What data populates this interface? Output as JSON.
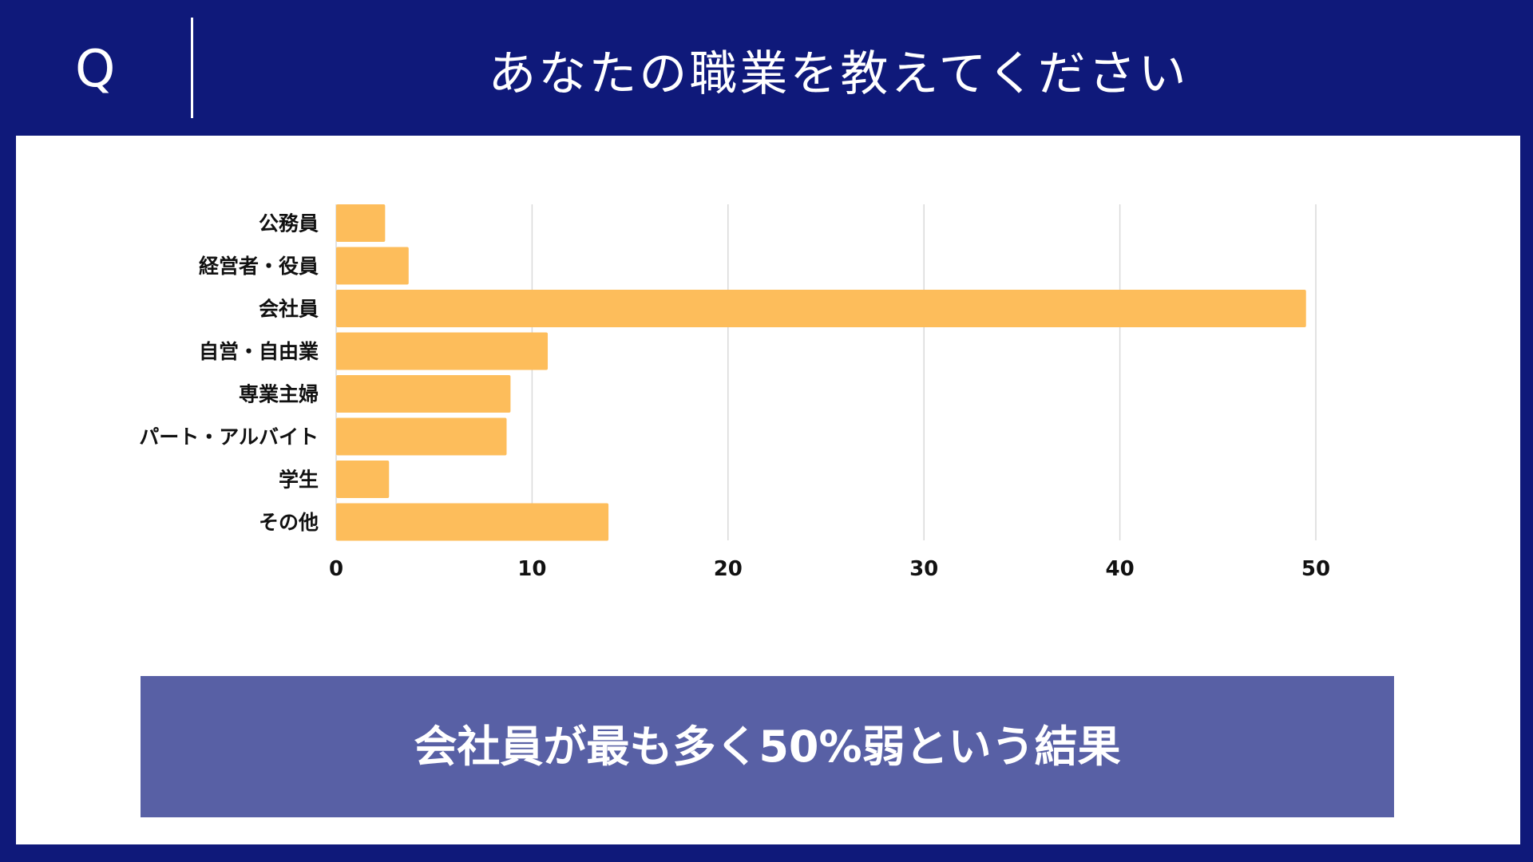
{
  "header": {
    "q_label": "Q",
    "question": "あなたの職業を教えてください"
  },
  "colors": {
    "background": "#0f197a",
    "panel": "#ffffff",
    "bar": "#fdbd5b",
    "grid": "#d9d9d9",
    "result_box": "#5860a5"
  },
  "chart_data": {
    "type": "bar",
    "orientation": "horizontal",
    "categories": [
      "公務員",
      "経営者・役員",
      "会社員",
      "自営・自由業",
      "専業主婦",
      "パート・アルバイト",
      "学生",
      "その他"
    ],
    "values": [
      2.5,
      3.7,
      49.5,
      10.8,
      8.9,
      8.7,
      2.7,
      13.9
    ],
    "xlim": [
      0,
      50
    ],
    "xticks": [
      "0",
      "10",
      "20",
      "30",
      "40",
      "50"
    ],
    "grid": true,
    "legend": "none"
  },
  "result": {
    "text": "会社員が最も多く50%弱という結果"
  }
}
